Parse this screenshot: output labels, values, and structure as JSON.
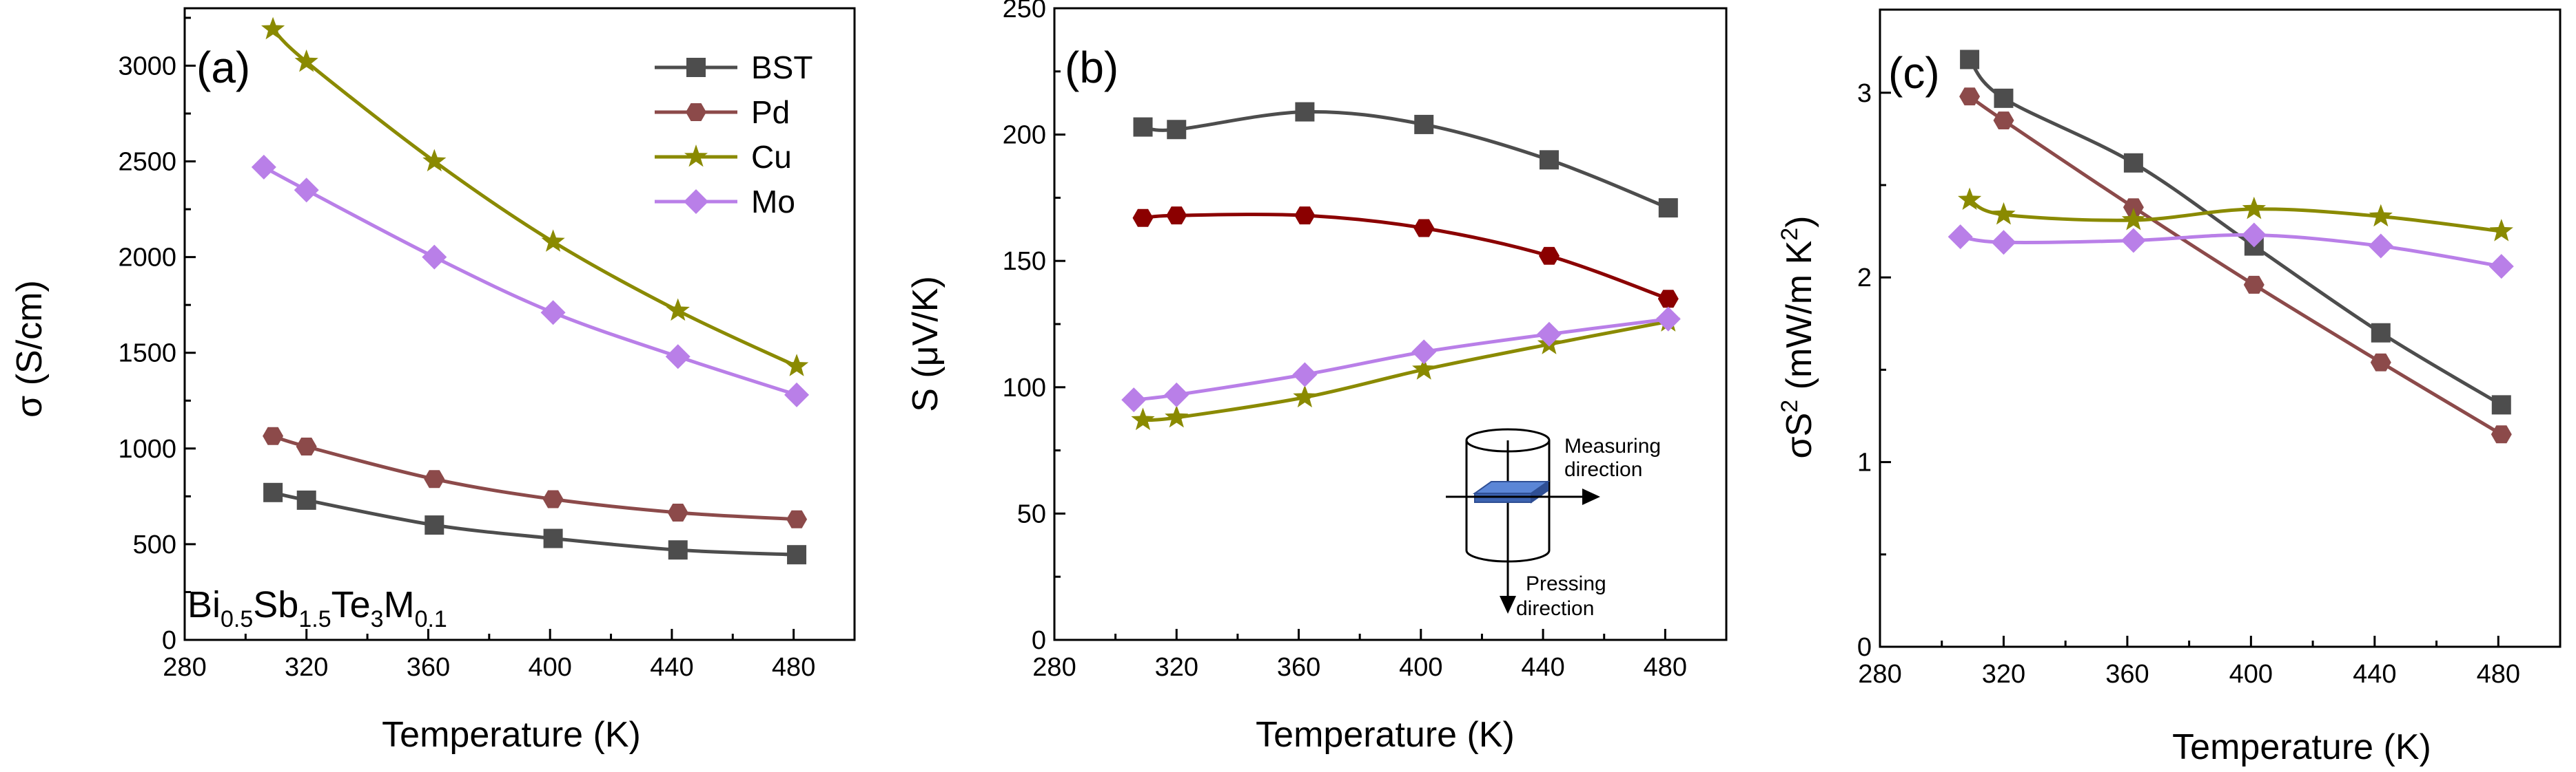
{
  "figure": {
    "composition": {
      "Bi": "Bi",
      "Bi_sub": "0.5",
      "Sb": "Sb",
      "Sb_sub": "1.5",
      "Te": "Te",
      "Te_sub": "3",
      "M": "M",
      "M_sub": "0.1"
    },
    "inset": {
      "measuring_1": "Measuring",
      "measuring_2": "direction",
      "pressing_1": "Pressing",
      "pressing_2": "direction"
    }
  },
  "colors": {
    "BST": "#4d4d4d",
    "Pd": "#8c4a4a",
    "Cu": "#8a8a00",
    "Mo": "#b97fe8",
    "Pd_b": "#8b0000"
  },
  "chart_data": [
    {
      "id": "a",
      "type": "line",
      "panel_label": "(a)",
      "title": "",
      "xlabel": "Temperature (K)",
      "ylabel": "σ (S/cm)",
      "xlim": [
        280,
        500
      ],
      "ylim": [
        0,
        3300
      ],
      "xticks": [
        280,
        320,
        360,
        400,
        440,
        480
      ],
      "yticks": [
        0,
        500,
        1000,
        1500,
        2000,
        2500,
        3000
      ],
      "legend": {
        "position": "top-right",
        "entries": [
          "BST",
          "Pd",
          "Cu",
          "Mo"
        ]
      },
      "series": [
        {
          "name": "BST",
          "marker": "square",
          "x": [
            309,
            320,
            362,
            401,
            442,
            481
          ],
          "y": [
            770,
            730,
            600,
            530,
            470,
            445
          ]
        },
        {
          "name": "Pd",
          "marker": "hexagon",
          "x": [
            309,
            320,
            362,
            401,
            442,
            481
          ],
          "y": [
            1065,
            1010,
            840,
            735,
            665,
            630
          ]
        },
        {
          "name": "Cu",
          "marker": "star",
          "x": [
            309,
            320,
            362,
            401,
            442,
            481
          ],
          "y": [
            3190,
            3020,
            2500,
            2080,
            1720,
            1430
          ]
        },
        {
          "name": "Mo",
          "marker": "diamond",
          "x": [
            306,
            320,
            362,
            401,
            442,
            481
          ],
          "y": [
            2470,
            2350,
            2000,
            1710,
            1480,
            1280
          ]
        }
      ]
    },
    {
      "id": "b",
      "type": "line",
      "panel_label": "(b)",
      "title": "",
      "xlabel": "Temperature (K)",
      "ylabel": "S (μV/K)",
      "xlim": [
        280,
        500
      ],
      "ylim": [
        0,
        250
      ],
      "xticks": [
        280,
        320,
        360,
        400,
        440,
        480
      ],
      "yticks": [
        0,
        50,
        100,
        150,
        200,
        250
      ],
      "series": [
        {
          "name": "BST",
          "marker": "square",
          "x": [
            309,
            320,
            362,
            401,
            442,
            481
          ],
          "y": [
            203,
            202,
            209,
            204,
            190,
            171
          ]
        },
        {
          "name": "Pd",
          "marker": "hexagon",
          "x": [
            309,
            320,
            362,
            401,
            442,
            481
          ],
          "y": [
            167,
            168,
            168,
            163,
            152,
            135
          ]
        },
        {
          "name": "Cu",
          "marker": "star",
          "x": [
            309,
            320,
            362,
            401,
            442,
            481
          ],
          "y": [
            87,
            88,
            96,
            107,
            117,
            126
          ]
        },
        {
          "name": "Mo",
          "marker": "diamond",
          "x": [
            306,
            320,
            362,
            401,
            442,
            481
          ],
          "y": [
            95,
            97,
            105,
            114,
            121,
            127
          ]
        }
      ]
    },
    {
      "id": "c",
      "type": "line",
      "panel_label": "(c)",
      "title": "",
      "xlabel": "Temperature (K)",
      "ylabel_main": "σS",
      "ylabel_sup": "2",
      "ylabel_unit": " (mW/m K",
      "ylabel_unit_sup": "2",
      "ylabel_end": ")",
      "xlim": [
        280,
        500
      ],
      "ylim": [
        0,
        3.45
      ],
      "xticks": [
        280,
        320,
        360,
        400,
        440,
        480
      ],
      "yticks": [
        0,
        1,
        2,
        3
      ],
      "series": [
        {
          "name": "BST",
          "marker": "square",
          "x": [
            309,
            320,
            362,
            401,
            442,
            481
          ],
          "y": [
            3.18,
            2.97,
            2.62,
            2.17,
            1.7,
            1.31
          ]
        },
        {
          "name": "Pd",
          "marker": "hexagon",
          "x": [
            309,
            320,
            362,
            401,
            442,
            481
          ],
          "y": [
            2.98,
            2.85,
            2.38,
            1.96,
            1.54,
            1.15
          ]
        },
        {
          "name": "Cu",
          "marker": "star",
          "x": [
            309,
            320,
            362,
            401,
            442,
            481
          ],
          "y": [
            2.42,
            2.34,
            2.31,
            2.37,
            2.33,
            2.25
          ]
        },
        {
          "name": "Mo",
          "marker": "diamond",
          "x": [
            306,
            320,
            362,
            401,
            442,
            481
          ],
          "y": [
            2.22,
            2.19,
            2.2,
            2.23,
            2.17,
            2.06
          ]
        }
      ]
    }
  ]
}
